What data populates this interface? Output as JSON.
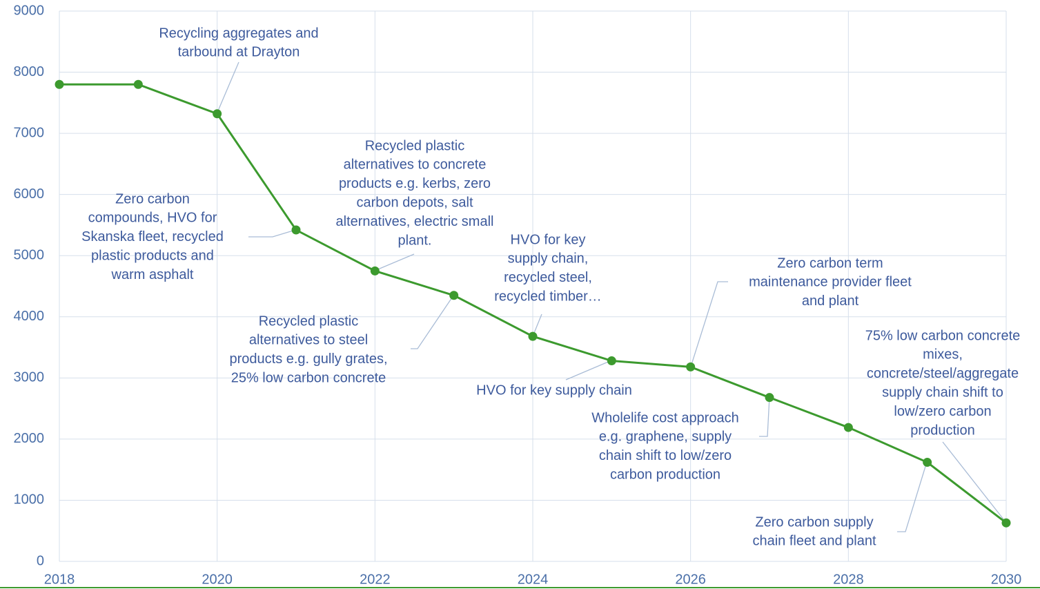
{
  "chart_data": {
    "type": "line",
    "x": [
      2018,
      2019,
      2020,
      2021,
      2022,
      2023,
      2024,
      2025,
      2026,
      2027,
      2028,
      2029,
      2030
    ],
    "series": [
      {
        "color": "#3c9a2e",
        "values": [
          7800,
          7800,
          7320,
          5420,
          4750,
          4350,
          3680,
          3280,
          3180,
          2680,
          2190,
          1620,
          630
        ]
      }
    ],
    "xlim": [
      2018,
      2030
    ],
    "xticks": [
      2018,
      2020,
      2022,
      2024,
      2026,
      2028,
      2030
    ],
    "ylim": [
      0,
      9000
    ],
    "yticks": [
      0,
      1000,
      2000,
      3000,
      4000,
      5000,
      6000,
      7000,
      8000,
      9000
    ],
    "grid": true,
    "annotations": [
      {
        "lines": [
          "Recycling aggregates and",
          "tarbound at Drayton"
        ]
      },
      {
        "lines": [
          "Zero carbon",
          "compounds, HVO for",
          "Skanska fleet, recycled",
          "plastic products and",
          "warm asphalt"
        ]
      },
      {
        "lines": [
          "Recycled plastic",
          "alternatives to concrete",
          "products e.g. kerbs, zero",
          "carbon depots, salt",
          "alternatives, electric small",
          "plant."
        ]
      },
      {
        "lines": [
          "HVO for key",
          "supply chain,",
          "recycled steel,",
          "recycled timber…"
        ]
      },
      {
        "lines": [
          "Recycled plastic",
          "alternatives to steel",
          "products e.g. gully grates,",
          "25% low carbon concrete"
        ]
      },
      {
        "lines": [
          "HVO for key supply chain"
        ]
      },
      {
        "lines": [
          "Zero carbon term",
          "maintenance provider fleet",
          "and plant"
        ]
      },
      {
        "lines": [
          "Wholelife cost approach",
          "e.g. graphene, supply",
          "chain shift to low/zero",
          "carbon production"
        ]
      },
      {
        "lines": [
          "75% low carbon concrete",
          "mixes,",
          "concrete/steel/aggregate",
          "supply chain shift to",
          "low/zero carbon",
          "production"
        ]
      },
      {
        "lines": [
          "Zero carbon supply",
          "chain fleet and plant"
        ]
      }
    ]
  }
}
